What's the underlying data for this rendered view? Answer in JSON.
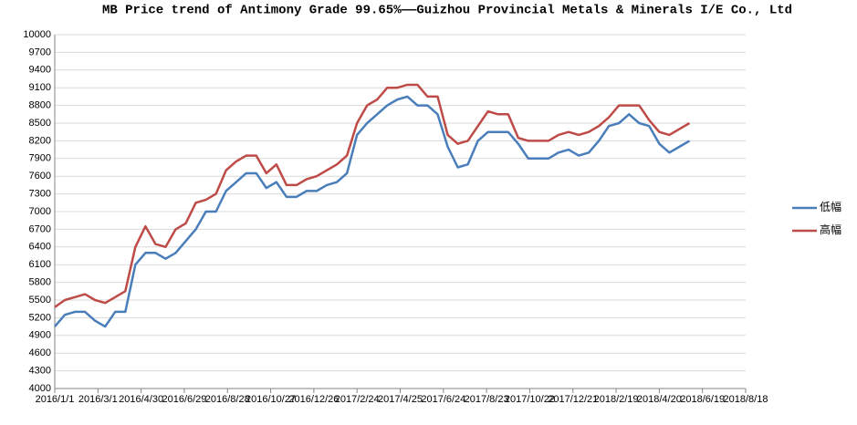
{
  "chart_data": {
    "type": "line",
    "title": "MB Price trend of Antimony Grade 99.65%——Guizhou Provincial Metals & Minerals I/E Co., Ltd",
    "x": [
      "2016/1/1",
      "2016/1/15",
      "2016/1/29",
      "2016/2/12",
      "2016/2/26",
      "2016/3/11",
      "2016/3/25",
      "2016/4/8",
      "2016/4/22",
      "2016/5/6",
      "2016/5/20",
      "2016/6/3",
      "2016/6/17",
      "2016/7/1",
      "2016/7/15",
      "2016/7/29",
      "2016/8/12",
      "2016/8/26",
      "2016/9/9",
      "2016/9/23",
      "2016/10/7",
      "2016/10/21",
      "2016/11/4",
      "2016/11/18",
      "2016/12/2",
      "2016/12/16",
      "2016/12/30",
      "2017/1/13",
      "2017/1/27",
      "2017/2/10",
      "2017/2/24",
      "2017/3/10",
      "2017/3/24",
      "2017/4/7",
      "2017/4/21",
      "2017/5/5",
      "2017/5/19",
      "2017/6/2",
      "2017/6/16",
      "2017/6/30",
      "2017/7/14",
      "2017/7/28",
      "2017/8/11",
      "2017/8/25",
      "2017/9/8",
      "2017/9/22",
      "2017/10/6",
      "2017/10/20",
      "2017/11/3",
      "2017/11/17",
      "2017/12/1",
      "2017/12/15",
      "2017/12/29",
      "2018/1/12",
      "2018/1/26",
      "2018/2/9",
      "2018/2/23",
      "2018/3/9",
      "2018/3/23",
      "2018/4/6",
      "2018/4/20",
      "2018/5/4",
      "2018/5/18",
      "2018/6/1"
    ],
    "series": [
      {
        "name": "低幅",
        "color": "#4a7ebb",
        "values": [
          5050,
          5250,
          5300,
          5300,
          5150,
          5050,
          5300,
          5300,
          6100,
          6300,
          6300,
          6200,
          6300,
          6500,
          6700,
          7000,
          7000,
          7350,
          7500,
          7650,
          7650,
          7400,
          7500,
          7250,
          7250,
          7350,
          7350,
          7450,
          7500,
          7650,
          8300,
          8500,
          8650,
          8800,
          8900,
          8950,
          8800,
          8800,
          8650,
          8100,
          7750,
          7800,
          8200,
          8350,
          8350,
          8350,
          8150,
          7900,
          7900,
          7900,
          8000,
          8050,
          7950,
          8000,
          8200,
          8450,
          8500,
          8650,
          8500,
          8450,
          8150,
          8000,
          8100,
          8200
        ]
      },
      {
        "name": "高幅",
        "color": "#be4b48",
        "values": [
          5380,
          5500,
          5550,
          5600,
          5500,
          5450,
          5550,
          5650,
          6400,
          6750,
          6450,
          6400,
          6700,
          6800,
          7150,
          7200,
          7300,
          7700,
          7850,
          7950,
          7950,
          7650,
          7800,
          7450,
          7450,
          7550,
          7600,
          7700,
          7800,
          7950,
          8500,
          8800,
          8900,
          9100,
          9100,
          9150,
          9150,
          8950,
          8950,
          8300,
          8150,
          8200,
          8450,
          8700,
          8650,
          8650,
          8250,
          8200,
          8200,
          8200,
          8300,
          8350,
          8300,
          8350,
          8450,
          8600,
          8800,
          8800,
          8800,
          8550,
          8350,
          8300,
          8400,
          8500
        ]
      }
    ],
    "xlim": [
      "2016/1/1",
      "2018/8/18"
    ],
    "xticks": [
      "2016/1/1",
      "2016/3/1",
      "2016/4/30",
      "2016/6/29",
      "2016/8/28",
      "2016/10/27",
      "2016/12/26",
      "2017/2/24",
      "2017/4/25",
      "2017/6/24",
      "2017/8/23",
      "2017/10/22",
      "2017/12/21",
      "2018/2/19",
      "2018/4/20",
      "2018/6/19",
      "2018/8/18"
    ],
    "ylim": [
      4000,
      10000
    ],
    "yticks": [
      4000,
      4300,
      4600,
      4900,
      5200,
      5500,
      5800,
      6100,
      6400,
      6700,
      7000,
      7300,
      7600,
      7900,
      8200,
      8500,
      8800,
      9100,
      9400,
      9700,
      10000
    ],
    "grid": true,
    "legend": "right"
  }
}
